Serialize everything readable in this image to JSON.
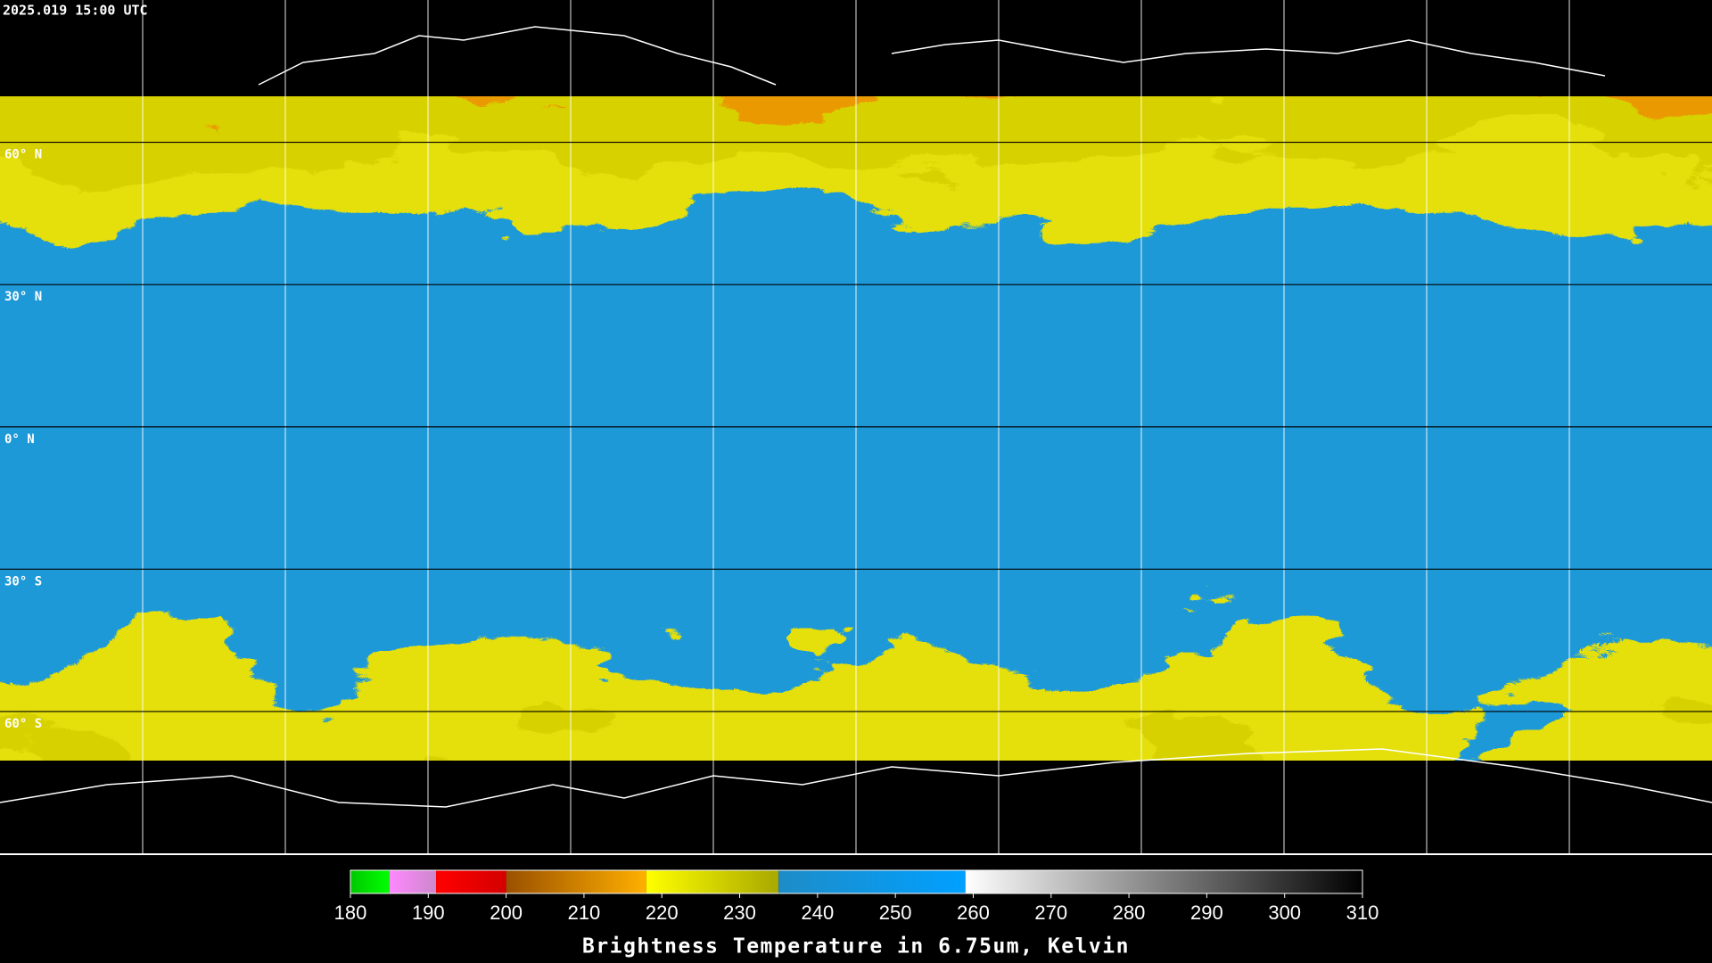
{
  "map": {
    "timestamp": "2025.019 15:00 UTC",
    "lat_range": [
      90,
      -90
    ],
    "latitude_lines": [
      {
        "value": 60,
        "label": "60° N"
      },
      {
        "value": 30,
        "label": "30° N"
      },
      {
        "value": 0,
        "label": "0° N"
      },
      {
        "value": -30,
        "label": "30° S"
      },
      {
        "value": -60,
        "label": "60° S"
      }
    ],
    "colorbar": {
      "title": "Brightness Temperature in 6.75um, Kelvin",
      "range": [
        180,
        310
      ],
      "ticks": [
        180,
        190,
        200,
        210,
        220,
        230,
        240,
        250,
        260,
        270,
        280,
        290,
        300,
        310
      ],
      "segments": [
        {
          "from": 180,
          "to": 185,
          "colors": [
            "#00c800",
            "#00ff00"
          ]
        },
        {
          "from": 185,
          "to": 191,
          "colors": [
            "#ff88ff",
            "#cc88cc"
          ]
        },
        {
          "from": 191,
          "to": 200,
          "colors": [
            "#ff0000",
            "#d40000"
          ]
        },
        {
          "from": 200,
          "to": 218,
          "colors": [
            "#9a5000",
            "#ffb000"
          ]
        },
        {
          "from": 218,
          "to": 235,
          "colors": [
            "#ffff00",
            "#a8a800"
          ]
        },
        {
          "from": 235,
          "to": 259,
          "colors": [
            "#1e8cc8",
            "#00a0ff"
          ]
        },
        {
          "from": 259,
          "to": 310,
          "colors": [
            "#ffffff",
            "#000000"
          ]
        }
      ]
    }
  }
}
